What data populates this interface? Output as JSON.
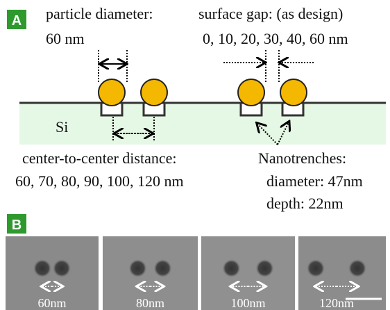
{
  "panel_a": {
    "label": "A",
    "particle_diameter": {
      "title": "particle diameter:",
      "value": "60 nm"
    },
    "surface_gap": {
      "title": "surface gap: (as design)",
      "values": "0, 10, 20, 30, 40, 60 nm"
    },
    "substrate": "Si",
    "center_distance": {
      "title": "center-to-center distance:",
      "values": "60, 70, 80, 90, 100, 120 nm"
    },
    "nanotrenches": {
      "title": "Nanotrenches:",
      "diameter": "diameter: 47nm",
      "depth": "depth: 22nm"
    }
  },
  "panel_b": {
    "label": "B",
    "images": [
      {
        "scale": "60nm"
      },
      {
        "scale": "80nm"
      },
      {
        "scale": "100nm"
      },
      {
        "scale": "120nm"
      }
    ]
  }
}
